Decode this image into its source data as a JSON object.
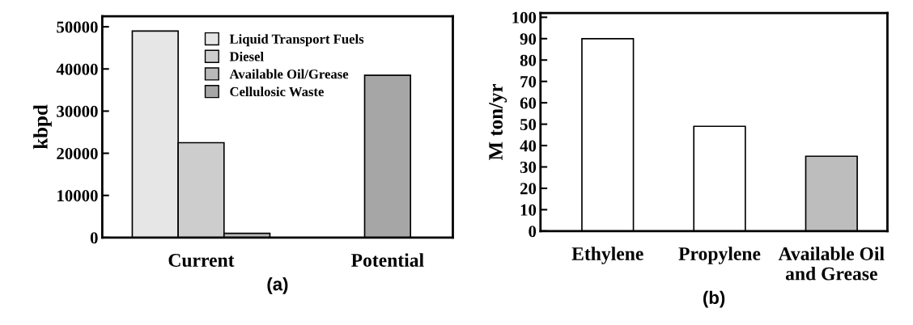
{
  "chart_data": [
    {
      "type": "bar",
      "xlabel": "(a)",
      "ylabel": "kbpd",
      "categories": [
        "Current",
        "Potential"
      ],
      "series": [
        {
          "name": "Liquid Transport Fuels",
          "color": "#e6e6e6",
          "values": [
            49000,
            null
          ]
        },
        {
          "name": "Diesel",
          "color": "#cdcdcd",
          "values": [
            22500,
            null
          ]
        },
        {
          "name": "Available Oil/Grease",
          "color": "#b9b9b9",
          "values": [
            1000,
            null
          ]
        },
        {
          "name": "Cellulosic Waste",
          "color": "#a6a6a6",
          "values": [
            null,
            38500
          ]
        }
      ],
      "ylim": [
        0,
        52500
      ],
      "yticks": [
        0,
        10000,
        20000,
        30000,
        40000,
        50000
      ],
      "legend": "top",
      "grid": false
    },
    {
      "type": "bar",
      "xlabel": "(b)",
      "ylabel": "M ton/yr",
      "categories": [
        "Ethylene",
        "Propylene",
        "Available Oil\nand Grease"
      ],
      "values": [
        90,
        49,
        35
      ],
      "colors": [
        "#ffffff",
        "#ffffff",
        "#bdbdbd"
      ],
      "ylim": [
        0,
        102
      ],
      "yticks": [
        0,
        10,
        20,
        30,
        40,
        50,
        60,
        70,
        80,
        90,
        100
      ],
      "grid": false
    }
  ]
}
